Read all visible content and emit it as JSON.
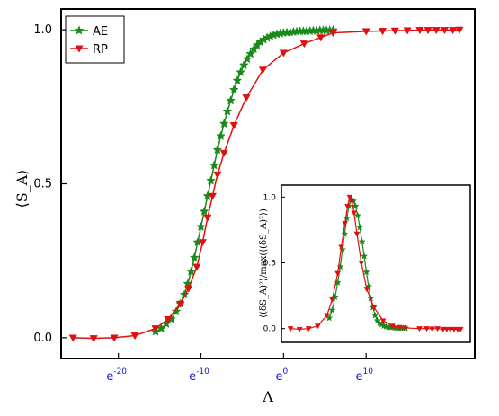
{
  "chart_data": [
    {
      "type": "line",
      "title": "",
      "xlabel": "Λ",
      "ylabel": "⟨S_A⟩",
      "xscale": "log-e",
      "xlim_exp": [
        -26.5,
        22.5
      ],
      "ylim": [
        -0.05,
        1.05
      ],
      "grid": false,
      "legend": "top-left",
      "x_ticks": [
        {
          "base": "e",
          "exp": "-20",
          "value_exp": -20
        },
        {
          "base": "e",
          "exp": "-10",
          "value_exp": -10
        },
        {
          "base": "e",
          "exp": "0",
          "value_exp": 0
        },
        {
          "base": "e",
          "exp": "10",
          "value_exp": 10
        }
      ],
      "y_ticks": [
        "0.0",
        "0.5",
        "1.0"
      ],
      "y_tick_values": [
        0,
        0.5,
        1
      ],
      "series": [
        {
          "name": "AE",
          "color": "#1a8a1a",
          "marker": "star",
          "x_exp": [
            -15.5,
            -14.8,
            -14.2,
            -13.6,
            -13.0,
            -12.5,
            -12.0,
            -11.6,
            -11.2,
            -10.8,
            -10.4,
            -10.0,
            -9.6,
            -9.2,
            -8.8,
            -8.4,
            -8.0,
            -7.6,
            -7.2,
            -6.8,
            -6.4,
            -6.0,
            -5.6,
            -5.2,
            -4.8,
            -4.4,
            -4.0,
            -3.6,
            -3.2,
            -2.8,
            -2.4,
            -2.0,
            -1.6,
            -1.2,
            -0.8,
            -0.4,
            0.0,
            0.4,
            0.8,
            1.2,
            1.6,
            2.0,
            2.4,
            2.8,
            3.2,
            3.6,
            4.0,
            4.4,
            4.8,
            5.2,
            5.6,
            6.0
          ],
          "values": [
            0.02,
            0.03,
            0.045,
            0.06,
            0.085,
            0.11,
            0.14,
            0.175,
            0.215,
            0.26,
            0.31,
            0.36,
            0.41,
            0.46,
            0.51,
            0.56,
            0.61,
            0.655,
            0.695,
            0.735,
            0.77,
            0.805,
            0.835,
            0.862,
            0.885,
            0.905,
            0.922,
            0.937,
            0.95,
            0.96,
            0.968,
            0.974,
            0.979,
            0.983,
            0.986,
            0.988,
            0.99,
            0.991,
            0.992,
            0.993,
            0.994,
            0.995,
            0.995,
            0.996,
            0.996,
            0.997,
            0.997,
            0.998,
            0.998,
            0.998,
            0.998,
            0.999
          ]
        },
        {
          "name": "RP",
          "color": "#e01010",
          "marker": "triangle-down",
          "x_exp": [
            -25.5,
            -23.0,
            -20.5,
            -18.0,
            -15.5,
            -14.0,
            -12.5,
            -11.5,
            -10.5,
            -9.8,
            -9.2,
            -8.6,
            -8.0,
            -7.2,
            -6.0,
            -4.5,
            -2.5,
            0.0,
            2.5,
            4.5,
            6.0,
            10.0,
            12.0,
            13.5,
            15.0,
            16.5,
            17.5,
            18.5,
            19.5,
            20.5,
            21.3
          ],
          "values": [
            0.0,
            -0.002,
            0.0,
            0.007,
            0.03,
            0.06,
            0.11,
            0.16,
            0.23,
            0.31,
            0.39,
            0.46,
            0.53,
            0.6,
            0.69,
            0.78,
            0.87,
            0.925,
            0.955,
            0.975,
            0.99,
            0.995,
            0.996,
            0.997,
            0.998,
            0.999,
            0.999,
            0.999,
            0.999,
            0.999,
            1.0
          ]
        }
      ]
    },
    {
      "type": "line",
      "title": "",
      "xlabel": "",
      "ylabel": "⟨(δS_A)²⟩/max(⟨(δS_A)²⟩)",
      "xscale": "log-e",
      "xlim_exp": [
        -26.5,
        22.5
      ],
      "ylim": [
        -0.05,
        1.05
      ],
      "grid": false,
      "y_ticks": [
        "0.0",
        "0.5",
        "1.0"
      ],
      "y_tick_values": [
        0,
        0.5,
        1
      ],
      "series": [
        {
          "color": "#1a8a1a",
          "marker": "star",
          "x_exp": [
            -14.8,
            -14.0,
            -13.2,
            -12.5,
            -11.8,
            -11.2,
            -10.6,
            -10.0,
            -9.4,
            -8.8,
            -8.2,
            -7.6,
            -7.0,
            -6.4,
            -5.8,
            -5.2,
            -4.6,
            -4.0,
            -3.4,
            -2.8,
            -2.2,
            -1.6,
            -1.0,
            -0.4,
            0.2,
            0.8,
            1.4,
            2.0,
            2.6,
            3.2,
            3.8,
            4.4,
            5.0,
            5.6,
            6.2
          ],
          "values": [
            0.08,
            0.14,
            0.24,
            0.35,
            0.47,
            0.6,
            0.72,
            0.84,
            0.93,
            0.98,
            0.97,
            0.93,
            0.86,
            0.77,
            0.66,
            0.55,
            0.43,
            0.32,
            0.23,
            0.16,
            0.1,
            0.06,
            0.04,
            0.03,
            0.02,
            0.015,
            0.01,
            0.01,
            0.008,
            0.006,
            0.005,
            0.004,
            0.004,
            0.003,
            0.003
          ]
        },
        {
          "color": "#e01010",
          "marker": "triangle-down",
          "x_exp": [
            -25.5,
            -23.0,
            -20.5,
            -18.0,
            -15.5,
            -14.0,
            -12.5,
            -11.5,
            -10.5,
            -9.8,
            -9.2,
            -8.6,
            -8.0,
            -7.2,
            -6.0,
            -4.5,
            -2.5,
            0.0,
            2.5,
            4.5,
            6.0,
            10.0,
            12.0,
            13.5,
            15.0,
            16.5,
            17.5,
            18.5,
            19.5,
            20.5,
            21.3
          ],
          "values": [
            0.0,
            -0.005,
            0.0,
            0.02,
            0.1,
            0.22,
            0.42,
            0.62,
            0.8,
            0.93,
            1.0,
            0.97,
            0.88,
            0.72,
            0.5,
            0.3,
            0.16,
            0.06,
            0.02,
            0.01,
            0.005,
            0.0,
            0.0,
            -0.002,
            0.0,
            -0.005,
            -0.005,
            -0.005,
            -0.005,
            -0.005,
            -0.005
          ]
        }
      ]
    }
  ]
}
